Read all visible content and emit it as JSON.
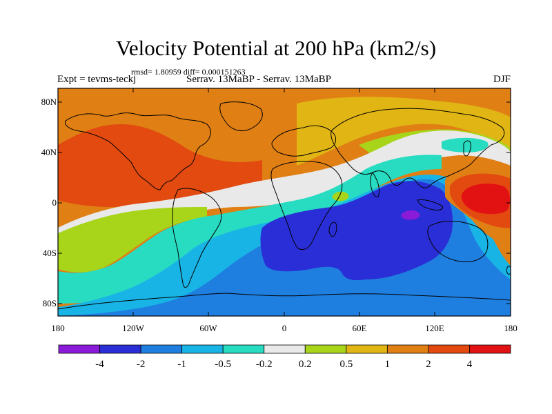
{
  "header": {
    "title": "Velocity Potential at 200 hPa (km2/s)",
    "stats": "rmsd= 1.80959 diff= 0.000151263",
    "left": "Expt = tevms-teckj",
    "center": "Serrav.   13MaBP - Serrav.   13MaBP",
    "right": "DJF"
  },
  "axes": {
    "y_ticks": [
      "80N",
      "40N",
      "0",
      "40S",
      "80S"
    ],
    "x_ticks": [
      "180",
      "120W",
      "60W",
      "0",
      "60E",
      "120E",
      "180"
    ]
  },
  "colorbar": {
    "labels": [
      "-4",
      "-2",
      "-1",
      "-0.5",
      "-0.2",
      "0.2",
      "0.5",
      "1",
      "2",
      "4"
    ],
    "colors": [
      "#8a1bd8",
      "#2a2ed6",
      "#1f7fe0",
      "#19b4e6",
      "#27dcc1",
      "#e9e9e9",
      "#a8d41a",
      "#e0b514",
      "#e07f14",
      "#e24a10",
      "#e31212"
    ]
  }
}
